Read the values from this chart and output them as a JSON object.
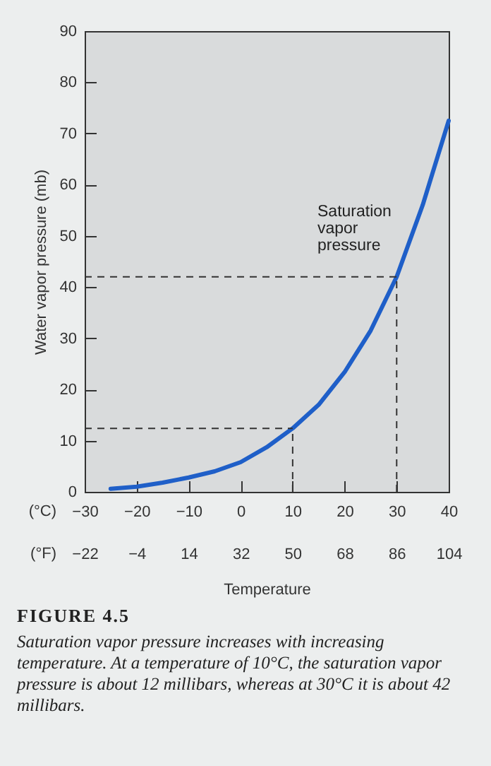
{
  "chart_data": {
    "type": "line",
    "title": "FIGURE 4.5",
    "xlabel": "Temperature",
    "ylabel": "Water vapor pressure (mb)",
    "x": [
      -25,
      -20,
      -15,
      -10,
      -5,
      0,
      5,
      10,
      15,
      20,
      25,
      30,
      35,
      40
    ],
    "series": [
      {
        "color": "#1f5fc8",
        "values": [
          0.6,
          1.0,
          1.8,
          2.8,
          4.0,
          5.8,
          8.7,
          12.4,
          17.0,
          23.4,
          31.5,
          42.0,
          56.0,
          72.5
        ]
      }
    ],
    "xlim": [
      -30,
      40
    ],
    "xticks": [
      -30,
      -20,
      -10,
      0,
      10,
      20,
      30,
      40
    ],
    "x2lim": [
      -22,
      104
    ],
    "x2ticks": [
      -22,
      -4,
      14,
      32,
      50,
      68,
      86,
      104
    ],
    "ylim": [
      0,
      90
    ],
    "yticks": [
      0,
      10,
      20,
      30,
      40,
      50,
      60,
      70,
      80,
      90
    ],
    "ref_lines": [
      {
        "axis": "x",
        "value": 10,
        "color": "#333333",
        "line_style": "dashed"
      },
      {
        "axis": "y",
        "value": 12.4,
        "color": "#333333",
        "line_style": "dashed"
      },
      {
        "axis": "x",
        "value": 30,
        "color": "#333333",
        "line_style": "dashed"
      },
      {
        "axis": "y",
        "value": 42,
        "color": "#333333",
        "line_style": "dashed"
      }
    ],
    "annotations": [
      "Saturation vapor pressure",
      "(°C)",
      "(°F)",
      "Saturation vapor pressure increases with increasing temperature. At a temperature of 10°C, the saturation vapor pressure is about 12 millibars, whereas at 30°C it is about 42 millibars."
    ],
    "grid": false,
    "marker": "none",
    "line_style": "solid"
  }
}
